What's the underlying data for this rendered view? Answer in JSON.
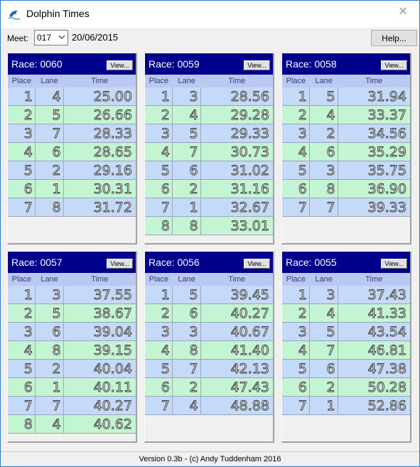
{
  "window": {
    "title": "Dolphin Times",
    "close_glyph": "✕"
  },
  "toolbar": {
    "meet_label": "Meet:",
    "meet_value": "017",
    "meet_date": "20/06/2015",
    "help_label": "Help..."
  },
  "status": {
    "text": "Version 0.3b - (c) Andy Tuddenham 2016"
  },
  "columns": {
    "place": "Place",
    "lane": "Lane",
    "time": "Time"
  },
  "view_label": "View...",
  "race_prefix": "Race:",
  "colors": {
    "header_bg": "#00008b",
    "row_blue": "#c5d9f8",
    "row_green": "#c3f5d2"
  },
  "races": [
    {
      "number": "0060",
      "results": [
        {
          "place": "1",
          "lane": "4",
          "time": "25.00"
        },
        {
          "place": "2",
          "lane": "5",
          "time": "26.66"
        },
        {
          "place": "3",
          "lane": "7",
          "time": "28.33"
        },
        {
          "place": "4",
          "lane": "6",
          "time": "28.65"
        },
        {
          "place": "5",
          "lane": "2",
          "time": "29.16"
        },
        {
          "place": "6",
          "lane": "1",
          "time": "30.31"
        },
        {
          "place": "7",
          "lane": "8",
          "time": "31.72"
        }
      ]
    },
    {
      "number": "0059",
      "results": [
        {
          "place": "1",
          "lane": "3",
          "time": "28.56"
        },
        {
          "place": "2",
          "lane": "4",
          "time": "29.28"
        },
        {
          "place": "3",
          "lane": "5",
          "time": "29.33"
        },
        {
          "place": "4",
          "lane": "7",
          "time": "30.73"
        },
        {
          "place": "5",
          "lane": "6",
          "time": "31.02"
        },
        {
          "place": "6",
          "lane": "2",
          "time": "31.16"
        },
        {
          "place": "7",
          "lane": "1",
          "time": "32.67"
        },
        {
          "place": "8",
          "lane": "8",
          "time": "33.01"
        }
      ]
    },
    {
      "number": "0058",
      "results": [
        {
          "place": "1",
          "lane": "5",
          "time": "31.94"
        },
        {
          "place": "2",
          "lane": "4",
          "time": "33.37"
        },
        {
          "place": "3",
          "lane": "2",
          "time": "34.56"
        },
        {
          "place": "4",
          "lane": "6",
          "time": "35.29"
        },
        {
          "place": "5",
          "lane": "3",
          "time": "35.75"
        },
        {
          "place": "6",
          "lane": "8",
          "time": "36.90"
        },
        {
          "place": "7",
          "lane": "7",
          "time": "39.33"
        }
      ]
    },
    {
      "number": "0057",
      "results": [
        {
          "place": "1",
          "lane": "3",
          "time": "37.55"
        },
        {
          "place": "2",
          "lane": "5",
          "time": "38.67"
        },
        {
          "place": "3",
          "lane": "6",
          "time": "39.04"
        },
        {
          "place": "4",
          "lane": "8",
          "time": "39.15"
        },
        {
          "place": "5",
          "lane": "2",
          "time": "40.04"
        },
        {
          "place": "6",
          "lane": "1",
          "time": "40.11"
        },
        {
          "place": "7",
          "lane": "7",
          "time": "40.27"
        },
        {
          "place": "8",
          "lane": "4",
          "time": "40.62"
        }
      ]
    },
    {
      "number": "0056",
      "results": [
        {
          "place": "1",
          "lane": "5",
          "time": "39.45"
        },
        {
          "place": "2",
          "lane": "6",
          "time": "40.27"
        },
        {
          "place": "3",
          "lane": "3",
          "time": "40.67"
        },
        {
          "place": "4",
          "lane": "8",
          "time": "41.40"
        },
        {
          "place": "5",
          "lane": "7",
          "time": "42.13"
        },
        {
          "place": "6",
          "lane": "2",
          "time": "47.43"
        },
        {
          "place": "7",
          "lane": "4",
          "time": "48.88"
        }
      ]
    },
    {
      "number": "0055",
      "results": [
        {
          "place": "1",
          "lane": "3",
          "time": "37.43"
        },
        {
          "place": "2",
          "lane": "4",
          "time": "41.33"
        },
        {
          "place": "3",
          "lane": "5",
          "time": "43.54"
        },
        {
          "place": "4",
          "lane": "7",
          "time": "46.81"
        },
        {
          "place": "5",
          "lane": "6",
          "time": "47.38"
        },
        {
          "place": "6",
          "lane": "2",
          "time": "50.28"
        },
        {
          "place": "7",
          "lane": "1",
          "time": "52.86"
        }
      ]
    }
  ]
}
